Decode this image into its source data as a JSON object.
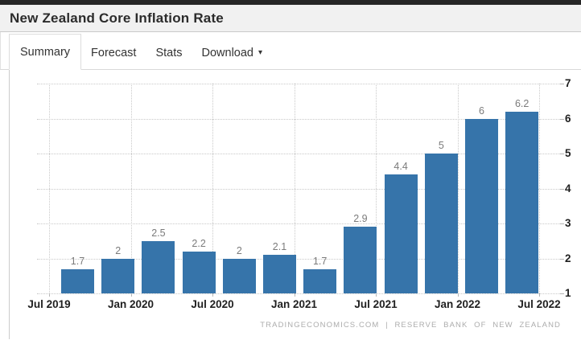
{
  "page": {
    "title": "New Zealand Core Inflation Rate"
  },
  "tabs": {
    "items": [
      {
        "label": "Summary",
        "active": true,
        "has_dropdown": false
      },
      {
        "label": "Forecast",
        "active": false,
        "has_dropdown": false
      },
      {
        "label": "Stats",
        "active": false,
        "has_dropdown": false
      },
      {
        "label": "Download",
        "active": false,
        "has_dropdown": true
      }
    ]
  },
  "icons": {
    "caret_down": "▾"
  },
  "chart_data": {
    "type": "bar",
    "title": "New Zealand Core Inflation Rate",
    "values": [
      1.7,
      2,
      2.5,
      2.2,
      2,
      2.1,
      1.7,
      2.9,
      4.4,
      5,
      6,
      6.2
    ],
    "value_labels": [
      "1.7",
      "2",
      "2.5",
      "2.2",
      "2",
      "2.1",
      "1.7",
      "2.9",
      "4.4",
      "5",
      "6",
      "6.2"
    ],
    "x_tick_labels": [
      "Jul 2019",
      "Jan 2020",
      "Jul 2020",
      "Jan 2021",
      "Jul 2021",
      "Jan 2022",
      "Jul 2022"
    ],
    "y_ticks": [
      1,
      2,
      3,
      4,
      5,
      6,
      7
    ],
    "ylim": [
      1,
      7
    ],
    "y_axis_position": "right",
    "grid": "dotted",
    "legend": "none",
    "bar_color": "#3674aa",
    "attribution": "TRADINGECONOMICS.COM | RESERVE BANK OF NEW ZEALAND"
  }
}
